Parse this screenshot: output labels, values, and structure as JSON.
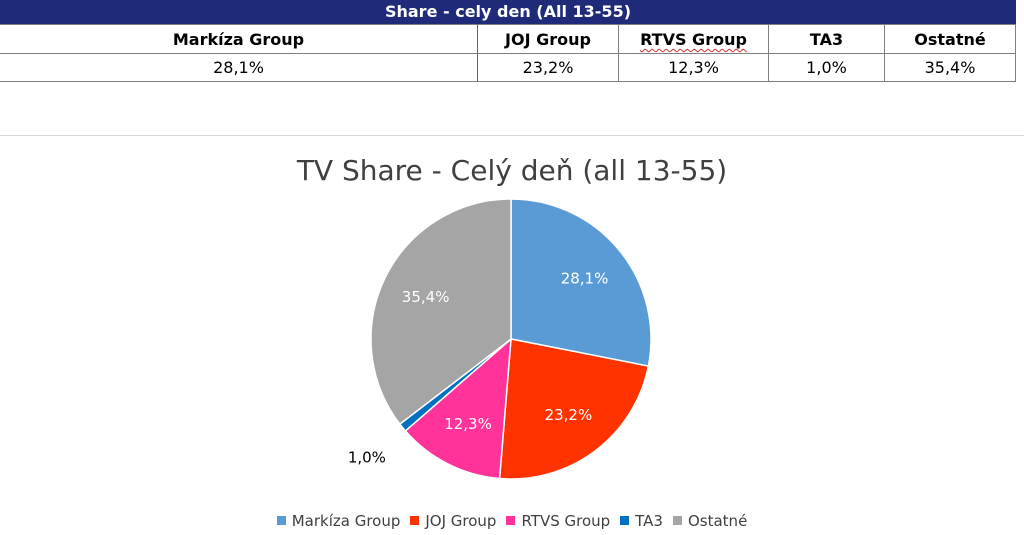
{
  "table": {
    "title": "Share - cely den (All 13-55)",
    "headers": [
      "Markíza Group",
      "JOJ Group",
      "RTVS Group",
      "TA3",
      "Ostatné"
    ],
    "values": [
      "28,1%",
      "23,2%",
      "12,3%",
      "1,0%",
      "35,4%"
    ]
  },
  "chart_data": {
    "type": "pie",
    "title": "TV Share - Celý deň (all 13-55)",
    "categories": [
      "Markíza Group",
      "JOJ Group",
      "RTVS Group",
      "TA3",
      "Ostatné"
    ],
    "values": [
      28.1,
      23.2,
      12.3,
      1.0,
      35.4
    ],
    "labels": [
      "28,1%",
      "23,2%",
      "12,3%",
      "1,0%",
      "35,4%"
    ],
    "colors": [
      "#5b9bd5",
      "#ff3300",
      "#ff3399",
      "#0070c0",
      "#a5a5a5"
    ],
    "legend_position": "bottom"
  }
}
